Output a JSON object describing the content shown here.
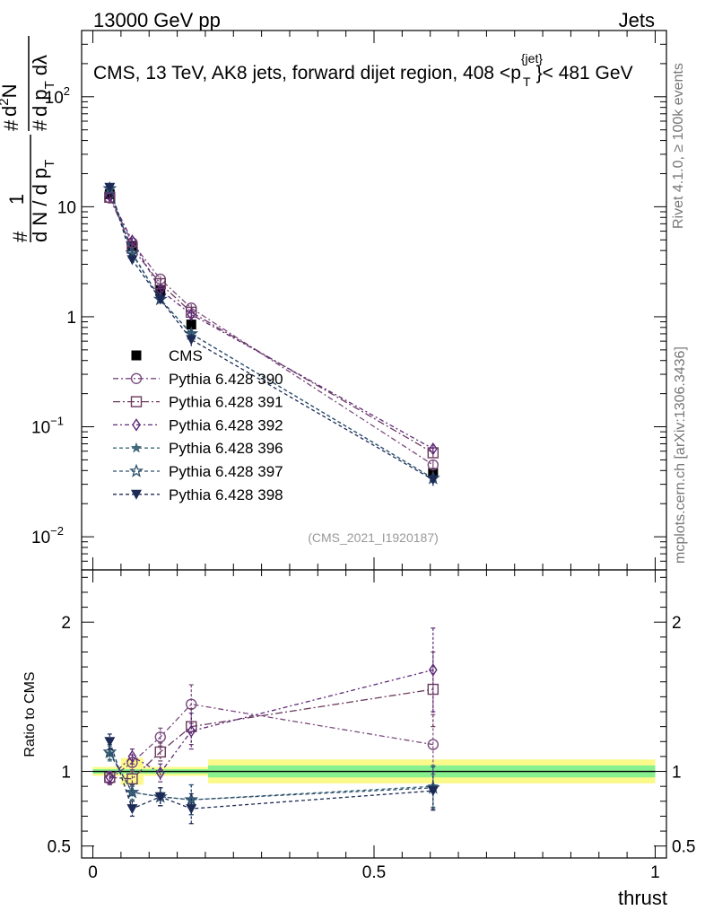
{
  "header": {
    "left": "13000 GeV pp",
    "right": "Jets"
  },
  "title": {
    "prefix": "CMS, 13 TeV, AK8 jets, forward dijet region, 408 <p",
    "sup": "{jet}",
    "sub": "T",
    "suffix": "}< 481 GeV"
  },
  "side_labels": {
    "rivet": "Rivet 4.1.0, ≥ 100k events",
    "mcplots": "mcplots.cern.ch [arXiv:1306.3436]"
  },
  "analysis_id": "(CMS_2021_I1920187)",
  "y_axis_main": {
    "hash1": "#",
    "one": "1",
    "dN": "d N / d p",
    "dN_sub": "T",
    "hash2": "#",
    "d2N": "d",
    "d2N_sup": "2",
    "N": "N",
    "hash3": "#",
    "dp": "d p",
    "dp_sub": "T",
    "dlambda": "dλ"
  },
  "y_axis_ratio_label": "Ratio to CMS",
  "x_axis_label": "thrust",
  "chart_data": [
    {
      "type": "line",
      "panel": "main",
      "yscale": "log",
      "xlim": [
        -0.02,
        1.02
      ],
      "ylim": [
        0.005,
        400
      ],
      "yticks": [
        {
          "value": 0.01,
          "base": "10",
          "exp": "−2"
        },
        {
          "value": 0.1,
          "base": "10",
          "exp": "−1"
        },
        {
          "value": 1,
          "label": "1"
        },
        {
          "value": 10,
          "label": "10"
        },
        {
          "value": 100,
          "base": "10",
          "exp": "2"
        }
      ],
      "x": [
        0.03,
        0.07,
        0.12,
        0.175,
        0.605
      ],
      "series": [
        {
          "name": "CMS",
          "color": "#000000",
          "marker": "square-filled",
          "dash": "",
          "values": [
            13.0,
            4.4,
            1.75,
            0.85,
            0.038
          ]
        },
        {
          "name": "Pythia 6.428 390",
          "color": "#7a4a7e",
          "marker": "circle-open",
          "dash": "6,3,2,3",
          "values": [
            12.0,
            4.7,
            2.2,
            1.2,
            0.045
          ],
          "errors": [
            0.5,
            0.3,
            0.15,
            0.1,
            0.005
          ]
        },
        {
          "name": "Pythia 6.428 391",
          "color": "#6a3a5e",
          "marker": "square-open",
          "dash": "8,3,2,3",
          "values": [
            12.2,
            4.2,
            2.0,
            1.1,
            0.058
          ],
          "errors": [
            0.5,
            0.3,
            0.15,
            0.1,
            0.006
          ]
        },
        {
          "name": "Pythia 6.428 392",
          "color": "#5e2a78",
          "marker": "diamond-open",
          "dash": "5,3,2,3",
          "values": [
            12.5,
            4.9,
            1.75,
            1.05,
            0.063
          ],
          "errors": [
            0.5,
            0.3,
            0.15,
            0.1,
            0.007
          ]
        },
        {
          "name": "Pythia 6.428 396",
          "color": "#3f6a7a",
          "marker": "star-filled",
          "dash": "4,3",
          "values": [
            14.5,
            3.7,
            1.45,
            0.7,
            0.034
          ],
          "errors": [
            0.6,
            0.3,
            0.12,
            0.08,
            0.004
          ]
        },
        {
          "name": "Pythia 6.428 397",
          "color": "#2e4f6e",
          "marker": "star-open",
          "dash": "4,3",
          "values": [
            14.6,
            3.8,
            1.44,
            0.7,
            0.034
          ],
          "errors": [
            0.6,
            0.3,
            0.12,
            0.08,
            0.004
          ]
        },
        {
          "name": "Pythia 6.428 398",
          "color": "#1c2a55",
          "marker": "triangle-down-filled",
          "dash": "4,3",
          "values": [
            15.0,
            3.3,
            1.44,
            0.62,
            0.033
          ],
          "errors": [
            0.6,
            0.3,
            0.12,
            0.08,
            0.004
          ]
        }
      ]
    },
    {
      "type": "line",
      "panel": "ratio",
      "xlim": [
        -0.02,
        1.02
      ],
      "ylim": [
        0.42,
        2.35
      ],
      "yticks": [
        0.5,
        1,
        2
      ],
      "xticks": [
        0,
        0.5,
        1
      ],
      "xlabel": "thrust",
      "ylabel": "Ratio to CMS",
      "reference": 1.0,
      "bands": [
        {
          "x0": 0.0,
          "x1": 0.05,
          "inner": [
            0.985,
            1.015
          ],
          "outer": [
            0.97,
            1.03
          ]
        },
        {
          "x0": 0.05,
          "x1": 0.09,
          "inner": [
            0.985,
            1.015
          ],
          "outer": [
            0.91,
            1.09
          ]
        },
        {
          "x0": 0.09,
          "x1": 0.205,
          "inner": [
            0.985,
            1.015
          ],
          "outer": [
            0.97,
            1.03
          ]
        },
        {
          "x0": 0.205,
          "x1": 1.0,
          "inner": [
            0.96,
            1.04
          ],
          "outer": [
            0.92,
            1.08
          ]
        }
      ],
      "x": [
        0.03,
        0.07,
        0.12,
        0.175,
        0.605
      ],
      "series": [
        {
          "name": "Pythia 6.428 390",
          "values": [
            0.95,
            1.06,
            1.23,
            1.45,
            1.18
          ],
          "errors": [
            0.04,
            0.05,
            0.06,
            0.13,
            0.2
          ]
        },
        {
          "name": "Pythia 6.428 391",
          "values": [
            0.96,
            0.95,
            1.13,
            1.3,
            1.55
          ],
          "errors": [
            0.04,
            0.05,
            0.06,
            0.12,
            0.25
          ]
        },
        {
          "name": "Pythia 6.428 392",
          "values": [
            0.96,
            1.1,
            0.99,
            1.27,
            1.68
          ],
          "errors": [
            0.04,
            0.05,
            0.06,
            0.12,
            0.28
          ]
        },
        {
          "name": "Pythia 6.428 396",
          "values": [
            1.12,
            0.86,
            0.83,
            0.81,
            0.9
          ],
          "errors": [
            0.05,
            0.05,
            0.06,
            0.1,
            0.14
          ]
        },
        {
          "name": "Pythia 6.428 397",
          "values": [
            1.13,
            0.86,
            0.83,
            0.81,
            0.89
          ],
          "errors": [
            0.05,
            0.05,
            0.06,
            0.1,
            0.14
          ]
        },
        {
          "name": "Pythia 6.428 398",
          "values": [
            1.2,
            0.75,
            0.83,
            0.75,
            0.87
          ],
          "errors": [
            0.05,
            0.05,
            0.06,
            0.1,
            0.13
          ]
        }
      ]
    }
  ]
}
